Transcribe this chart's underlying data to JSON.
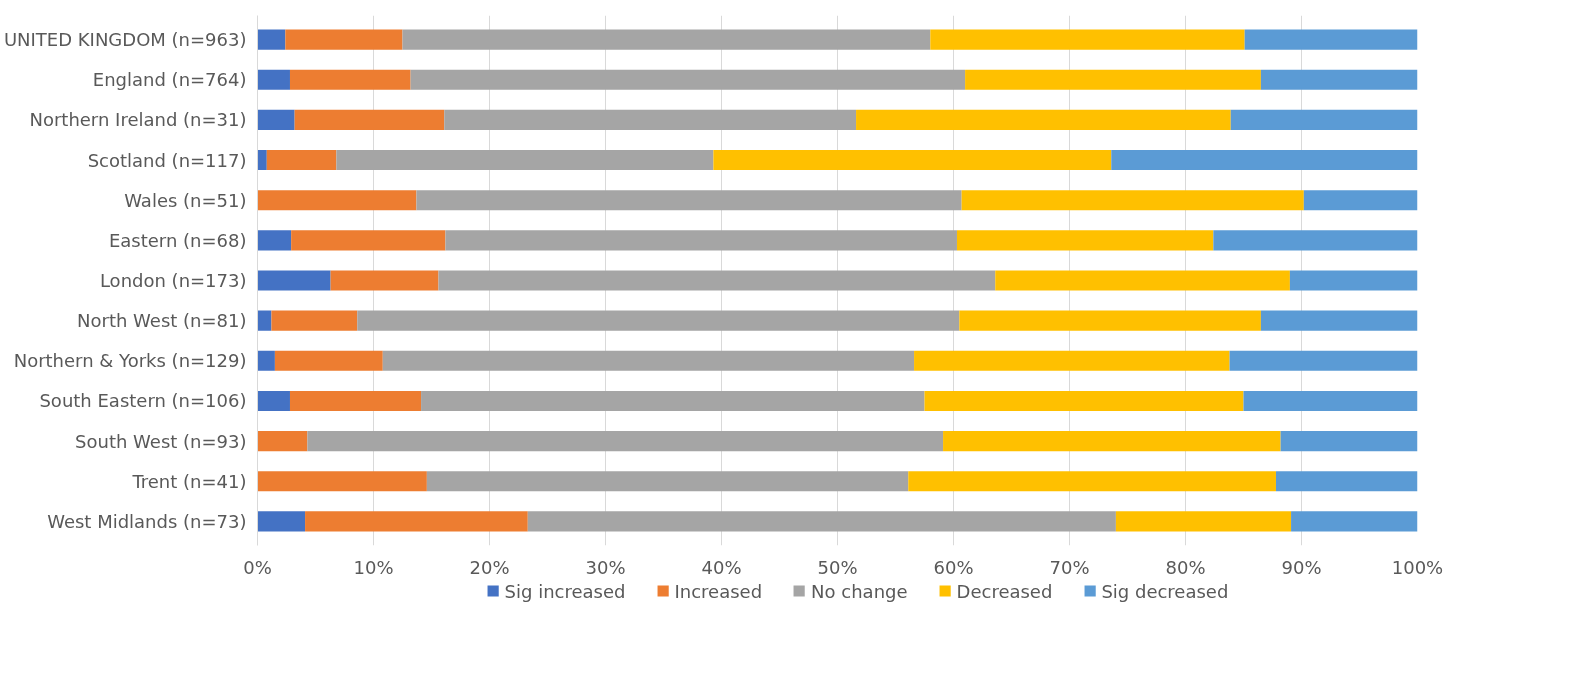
{
  "chart_data": {
    "type": "bar",
    "orientation": "horizontal",
    "stacked": true,
    "categories": [
      "UNITED KINGDOM (n=963)",
      "England (n=764)",
      "Northern Ireland (n=31)",
      "Scotland (n=117)",
      "Wales (n=51)",
      "Eastern (n=68)",
      "London (n=173)",
      "North West (n=81)",
      "Northern & Yorks (n=129)",
      "South Eastern (n=106)",
      "South West (n=93)",
      "Trent (n=41)",
      "West Midlands (n=73)"
    ],
    "series": [
      {
        "name": "Sig increased",
        "color": "#4472c4",
        "values": [
          2.4,
          2.8,
          3.2,
          0.8,
          0,
          2.9,
          6.3,
          1.2,
          1.5,
          2.8,
          0,
          0,
          4.1
        ]
      },
      {
        "name": "Increased",
        "color": "#ed7d31",
        "values": [
          10.1,
          10.4,
          12.9,
          6.0,
          13.7,
          13.3,
          9.3,
          7.4,
          9.3,
          11.3,
          4.3,
          14.6,
          19.2
        ]
      },
      {
        "name": "No change",
        "color": "#a5a5a5",
        "values": [
          45.5,
          47.8,
          35.5,
          32.5,
          47.0,
          44.1,
          48.0,
          51.9,
          45.8,
          43.4,
          54.8,
          41.5,
          50.7
        ]
      },
      {
        "name": "Decreased",
        "color": "#ffc000",
        "values": [
          27.1,
          25.5,
          32.3,
          34.3,
          29.5,
          22.1,
          25.4,
          26.0,
          27.2,
          27.5,
          29.1,
          31.7,
          15.1
        ]
      },
      {
        "name": "Sig decreased",
        "color": "#5b9bd5",
        "values": [
          14.9,
          13.5,
          16.1,
          26.4,
          9.8,
          17.6,
          11.0,
          13.5,
          16.2,
          15.0,
          11.8,
          12.2,
          10.9
        ]
      }
    ],
    "xlim": [
      0,
      100
    ],
    "xticks": [
      {
        "value": 0,
        "label": "0%"
      },
      {
        "value": 10,
        "label": "10%"
      },
      {
        "value": 20,
        "label": "20%"
      },
      {
        "value": 30,
        "label": "30%"
      },
      {
        "value": 40,
        "label": "40%"
      },
      {
        "value": 50,
        "label": "50%"
      },
      {
        "value": 60,
        "label": "60%"
      },
      {
        "value": 70,
        "label": "70%"
      },
      {
        "value": 80,
        "label": "80%"
      },
      {
        "value": 90,
        "label": "90%"
      },
      {
        "value": 100,
        "label": "100%"
      }
    ],
    "grid": "x",
    "legend": "bottom"
  }
}
